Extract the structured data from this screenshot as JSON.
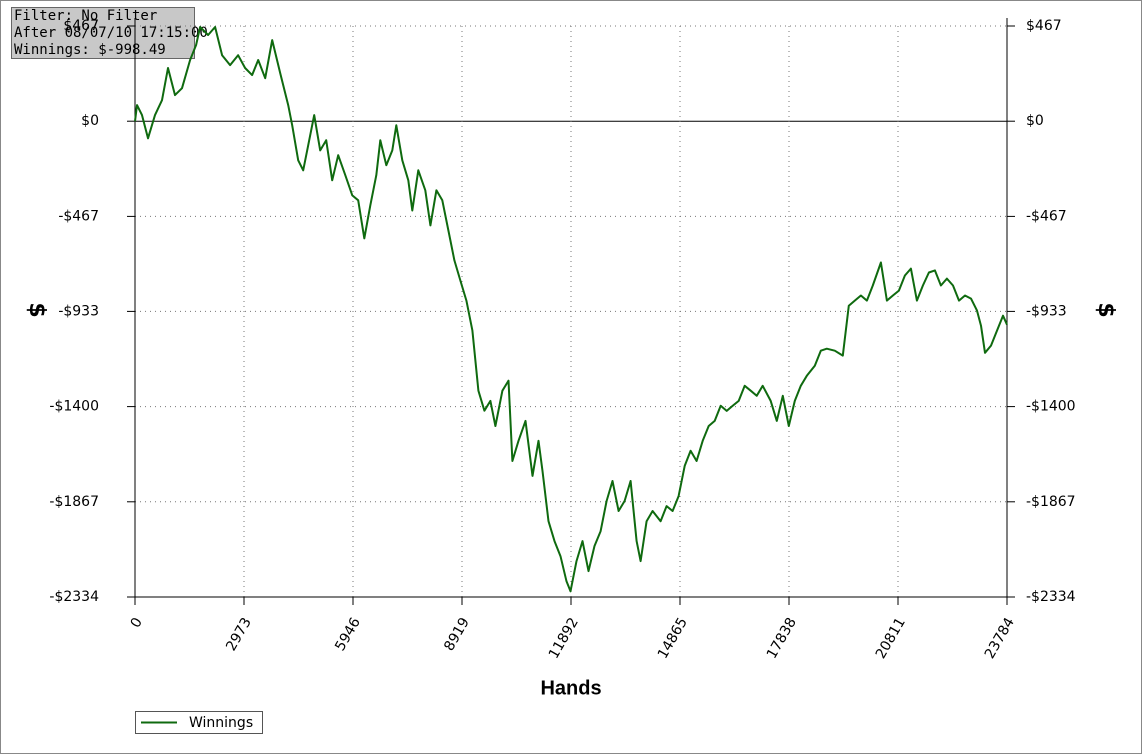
{
  "chart_data": {
    "type": "line",
    "annotations": [
      "Filter: No Filter",
      "After 08/07/10 17:15:00",
      "Winnings: $-998.49"
    ],
    "xlabel": "Hands",
    "ylabel": "$",
    "xlim": [
      0,
      23784
    ],
    "xticks": [
      0,
      2973,
      5946,
      8919,
      11892,
      14865,
      17838,
      20811,
      23784
    ],
    "ylim": [
      -2334,
      467
    ],
    "yticks": [
      {
        "value": -2334,
        "label": "-$2334"
      },
      {
        "value": -1867,
        "label": "-$1867"
      },
      {
        "value": -1400,
        "label": "-$1400"
      },
      {
        "value": -933,
        "label": "-$933"
      },
      {
        "value": -467,
        "label": "-$467"
      },
      {
        "value": 0,
        "label": "$0"
      },
      {
        "value": 467,
        "label": "$467"
      }
    ],
    "grid": true,
    "zero_line": true,
    "legend": "bottom-left",
    "x": [
      0,
      55,
      191,
      355,
      546,
      737,
      901,
      1092,
      1283,
      1502,
      1666,
      1775,
      1993,
      2185,
      2376,
      2594,
      2813,
      3004,
      3195,
      3359,
      3550,
      3741,
      3960,
      4178,
      4287,
      4451,
      4588,
      4724,
      4888,
      5052,
      5216,
      5380,
      5543,
      5735,
      5926,
      6089,
      6253,
      6417,
      6581,
      6690,
      6854,
      7018,
      7127,
      7291,
      7455,
      7564,
      7728,
      7919,
      8056,
      8220,
      8383,
      8547,
      8711,
      8875,
      9039,
      9203,
      9366,
      9530,
      9694,
      9831,
      10022,
      10186,
      10295,
      10459,
      10650,
      10841,
      11005,
      11114,
      11278,
      11442,
      11606,
      11769,
      11879,
      12042,
      12206,
      12370,
      12534,
      12698,
      12862,
      13025,
      13189,
      13353,
      13517,
      13681,
      13790,
      13954,
      14118,
      14336,
      14500,
      14664,
      14828,
      14992,
      15155,
      15319,
      15483,
      15647,
      15811,
      15975,
      16138,
      16302,
      16466,
      16630,
      16794,
      16958,
      17121,
      17340,
      17504,
      17668,
      17832,
      17995,
      18159,
      18323,
      18541,
      18705,
      18869,
      19088,
      19306,
      19470,
      19634,
      19798,
      19962,
      20125,
      20344,
      20508,
      20671,
      20835,
      20999,
      21163,
      21327,
      21491,
      21655,
      21818,
      21982,
      22146,
      22310,
      22474,
      22638,
      22801,
      22965,
      23074,
      23184,
      23348,
      23512,
      23675,
      23784
    ],
    "series": [
      {
        "name": "Winnings",
        "color": "#0f6a0f",
        "values": [
          0,
          79,
          30,
          -84,
          30,
          103,
          261,
          128,
          162,
          300,
          374,
          462,
          423,
          462,
          324,
          275,
          324,
          261,
          226,
          300,
          211,
          398,
          236,
          79,
          -20,
          -192,
          -241,
          -118,
          30,
          -143,
          -93,
          -290,
          -167,
          -265,
          -364,
          -388,
          -575,
          -413,
          -265,
          -93,
          -216,
          -143,
          -20,
          -192,
          -290,
          -438,
          -241,
          -339,
          -511,
          -339,
          -388,
          -536,
          -683,
          -782,
          -880,
          -1027,
          -1322,
          -1420,
          -1372,
          -1495,
          -1322,
          -1273,
          -1667,
          -1568,
          -1470,
          -1740,
          -1568,
          -1716,
          -1962,
          -2060,
          -2134,
          -2257,
          -2306,
          -2158,
          -2060,
          -2207,
          -2084,
          -2011,
          -1863,
          -1765,
          -1912,
          -1863,
          -1765,
          -2060,
          -2158,
          -1962,
          -1912,
          -1962,
          -1888,
          -1912,
          -1839,
          -1691,
          -1617,
          -1667,
          -1568,
          -1495,
          -1470,
          -1396,
          -1421,
          -1396,
          -1372,
          -1298,
          -1322,
          -1347,
          -1298,
          -1372,
          -1470,
          -1347,
          -1495,
          -1372,
          -1298,
          -1249,
          -1200,
          -1126,
          -1116,
          -1126,
          -1150,
          -905,
          -880,
          -855,
          -880,
          -806,
          -693,
          -880,
          -855,
          -831,
          -757,
          -723,
          -880,
          -806,
          -742,
          -732,
          -806,
          -772,
          -806,
          -880,
          -855,
          -870,
          -929,
          -1003,
          -1136,
          -1101,
          -1027,
          -954,
          -998.49
        ]
      }
    ]
  }
}
